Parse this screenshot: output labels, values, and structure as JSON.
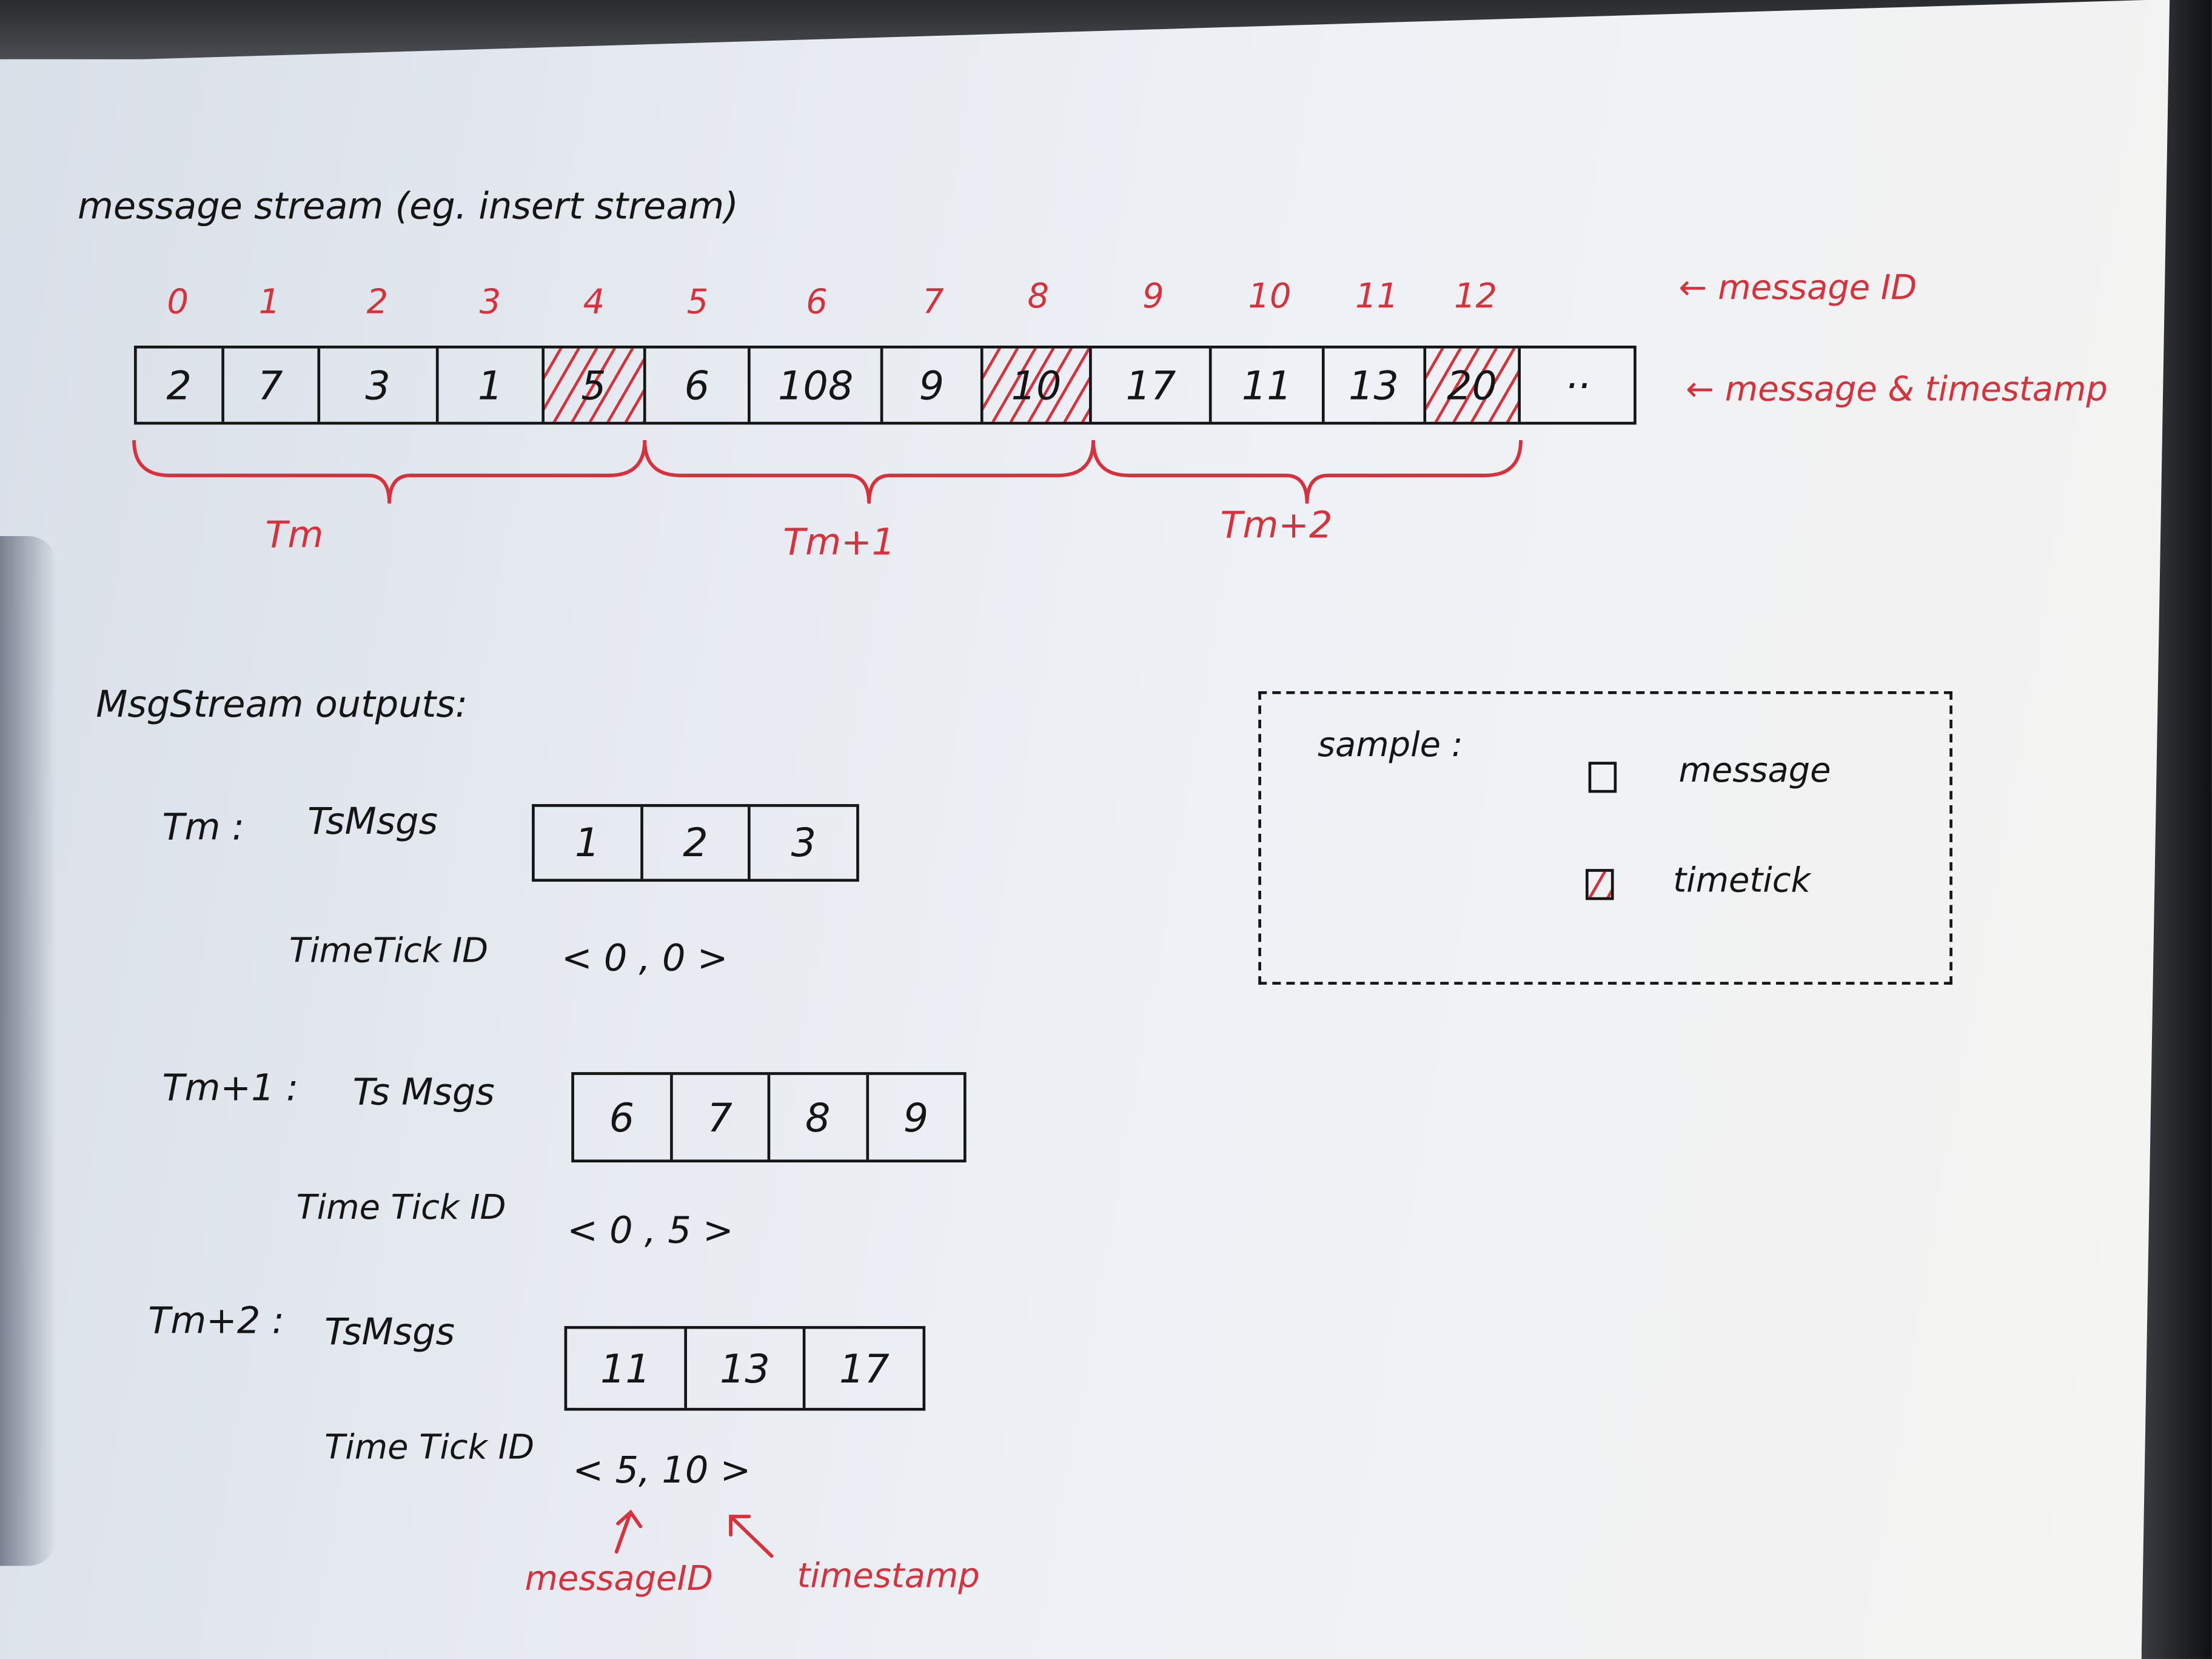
{
  "title": "message stream (eg. insert stream)",
  "stream": {
    "message_ids": [
      "0",
      "1",
      "2",
      "3",
      "4",
      "5",
      "6",
      "7",
      "8",
      "9",
      "10",
      "11",
      "12"
    ],
    "values": [
      "2",
      "7",
      "3",
      "1",
      "5",
      "6",
      "108",
      "9",
      "10",
      "17",
      "11",
      "13",
      "20",
      "··"
    ],
    "timetick_indices": [
      4,
      8,
      12
    ],
    "label_message_id": "← message ID",
    "label_message_timestamp": "← message & timestamp",
    "groups": [
      {
        "label": "Tm",
        "from_index": 0,
        "to_index": 4
      },
      {
        "label": "Tm+1",
        "from_index": 5,
        "to_index": 8
      },
      {
        "label": "Tm+2",
        "from_index": 9,
        "to_index": 12
      }
    ]
  },
  "outputs": {
    "heading": "MsgStream outputs:",
    "items": [
      {
        "period": "Tm :",
        "msgs_label": "TsMsgs",
        "msgs": [
          "1",
          "2",
          "3"
        ],
        "tt_label": "TimeTick ID",
        "tt_value": "< 0 , 0 >"
      },
      {
        "period": "Tm+1 :",
        "msgs_label": "Ts Msgs",
        "msgs": [
          "6",
          "7",
          "8",
          "9"
        ],
        "tt_label": "Time Tick ID",
        "tt_value": "< 0 , 5 >"
      },
      {
        "period": "Tm+2 :",
        "msgs_label": "TsMsgs",
        "msgs": [
          "11",
          "13",
          "17"
        ],
        "tt_label": "Time Tick ID",
        "tt_value": "< 5, 10 >"
      }
    ],
    "annotation_message_id": "messageID",
    "annotation_timestamp": "timestamp"
  },
  "legend": {
    "title": "sample :",
    "items": [
      {
        "label": "message",
        "kind": "message"
      },
      {
        "label": "timetick",
        "kind": "timetick"
      }
    ]
  },
  "colors": {
    "ink": "#151515",
    "red_pen": "#d8313c",
    "paper": "#eef1f5"
  }
}
